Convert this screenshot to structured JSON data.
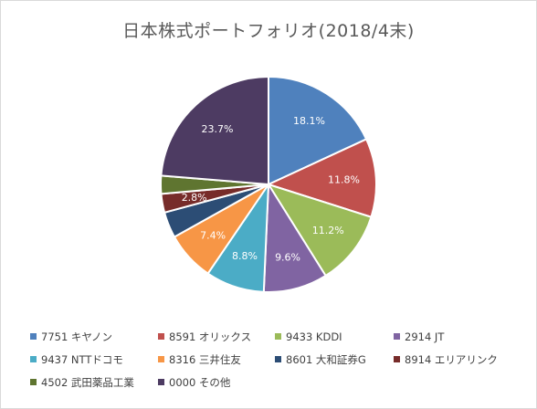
{
  "chart_data": {
    "type": "pie",
    "title": "日本株式ポートフォリオ(2018/4末)",
    "categories": [
      "7751 キヤノン",
      "8591 オリックス",
      "9433 KDDI",
      "2914 JT",
      "9437 NTTドコモ",
      "8316 三井住友",
      "8601 大和証券G",
      "8914 エリアリンク",
      "4502 武田薬品工業",
      "0000 その他"
    ],
    "values": [
      18.1,
      11.8,
      11.2,
      9.6,
      8.8,
      7.4,
      3.9,
      2.8,
      2.7,
      23.7
    ],
    "data_labels": [
      "18.1%",
      "11.8%",
      "11.2%",
      "9.6%",
      "8.8%",
      "7.4%",
      "",
      "2.8%",
      "",
      "23.7%"
    ],
    "colors": [
      "#4f81bd",
      "#c0504d",
      "#9bbb59",
      "#8064a2",
      "#4bacc6",
      "#f79646",
      "#2c4d75",
      "#772c2a",
      "#5f7530",
      "#4d3b62"
    ],
    "legend_position": "bottom",
    "start_angle_deg": 0,
    "direction": "clockwise"
  }
}
